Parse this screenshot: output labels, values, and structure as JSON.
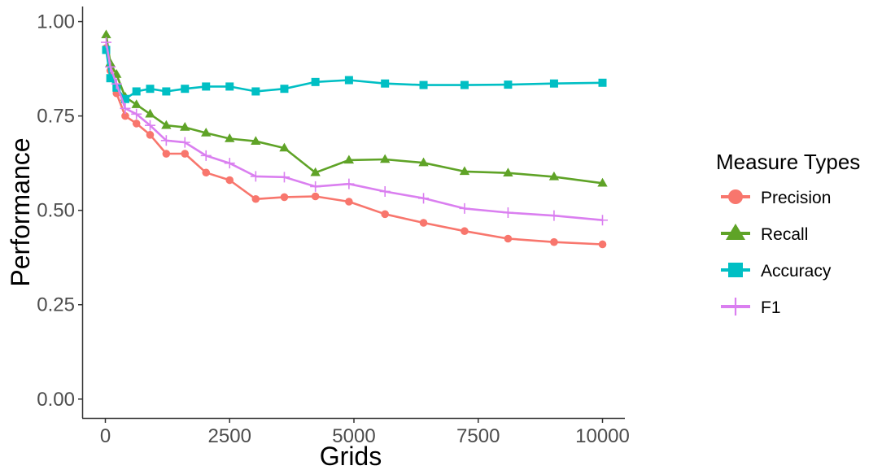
{
  "chart_data": {
    "type": "line",
    "xlabel": "Grids",
    "ylabel": "Performance",
    "xlim": [
      -450,
      10450
    ],
    "ylim": [
      -0.05,
      1.04
    ],
    "xticks": [
      0,
      2500,
      5000,
      7500,
      10000
    ],
    "xtick_labels": [
      "0",
      "2500",
      "5000",
      "7500",
      "10000"
    ],
    "yticks": [
      0.0,
      0.25,
      0.5,
      0.75,
      1.0
    ],
    "ytick_labels": [
      "0.00",
      "0.25",
      "0.50",
      "0.75",
      "1.00"
    ],
    "grid": false,
    "legend": {
      "title": "Measure Types",
      "position": "right"
    },
    "series": [
      {
        "name": "Precision",
        "color": "#F8766D",
        "marker": "circle",
        "x": [
          16,
          100,
          225,
          400,
          625,
          900,
          1225,
          1600,
          2025,
          2500,
          3025,
          3600,
          4225,
          4900,
          5625,
          6400,
          7225,
          8100,
          9025,
          10000
        ],
        "y": [
          0.93,
          0.87,
          0.81,
          0.75,
          0.73,
          0.7,
          0.65,
          0.65,
          0.6,
          0.58,
          0.53,
          0.535,
          0.537,
          0.523,
          0.49,
          0.467,
          0.445,
          0.425,
          0.416,
          0.41
        ]
      },
      {
        "name": "Recall",
        "color": "#5FA327",
        "marker": "triangle",
        "x": [
          16,
          100,
          225,
          400,
          625,
          900,
          1225,
          1600,
          2025,
          2500,
          3025,
          3600,
          4225,
          4900,
          5625,
          6400,
          7225,
          8100,
          9025,
          10000
        ],
        "y": [
          0.965,
          0.89,
          0.86,
          0.8,
          0.78,
          0.755,
          0.725,
          0.72,
          0.705,
          0.69,
          0.683,
          0.665,
          0.6,
          0.633,
          0.635,
          0.626,
          0.603,
          0.599,
          0.589,
          0.572
        ]
      },
      {
        "name": "Accuracy",
        "color": "#00BFC4",
        "marker": "square",
        "x": [
          16,
          100,
          225,
          400,
          625,
          900,
          1225,
          1600,
          2025,
          2500,
          3025,
          3600,
          4225,
          4900,
          5625,
          6400,
          7225,
          8100,
          9025,
          10000
        ],
        "y": [
          0.925,
          0.85,
          0.825,
          0.795,
          0.815,
          0.822,
          0.815,
          0.822,
          0.828,
          0.828,
          0.815,
          0.822,
          0.84,
          0.845,
          0.836,
          0.832,
          0.832,
          0.833,
          0.836,
          0.838
        ]
      },
      {
        "name": "F1",
        "color": "#DA7FF0",
        "marker": "plus",
        "x": [
          16,
          100,
          225,
          400,
          625,
          900,
          1225,
          1600,
          2025,
          2500,
          3025,
          3600,
          4225,
          4900,
          5625,
          6400,
          7225,
          8100,
          9025,
          10000
        ],
        "y": [
          0.945,
          0.88,
          0.835,
          0.77,
          0.755,
          0.725,
          0.685,
          0.68,
          0.645,
          0.625,
          0.59,
          0.588,
          0.563,
          0.57,
          0.55,
          0.532,
          0.505,
          0.494,
          0.486,
          0.474
        ]
      }
    ]
  }
}
